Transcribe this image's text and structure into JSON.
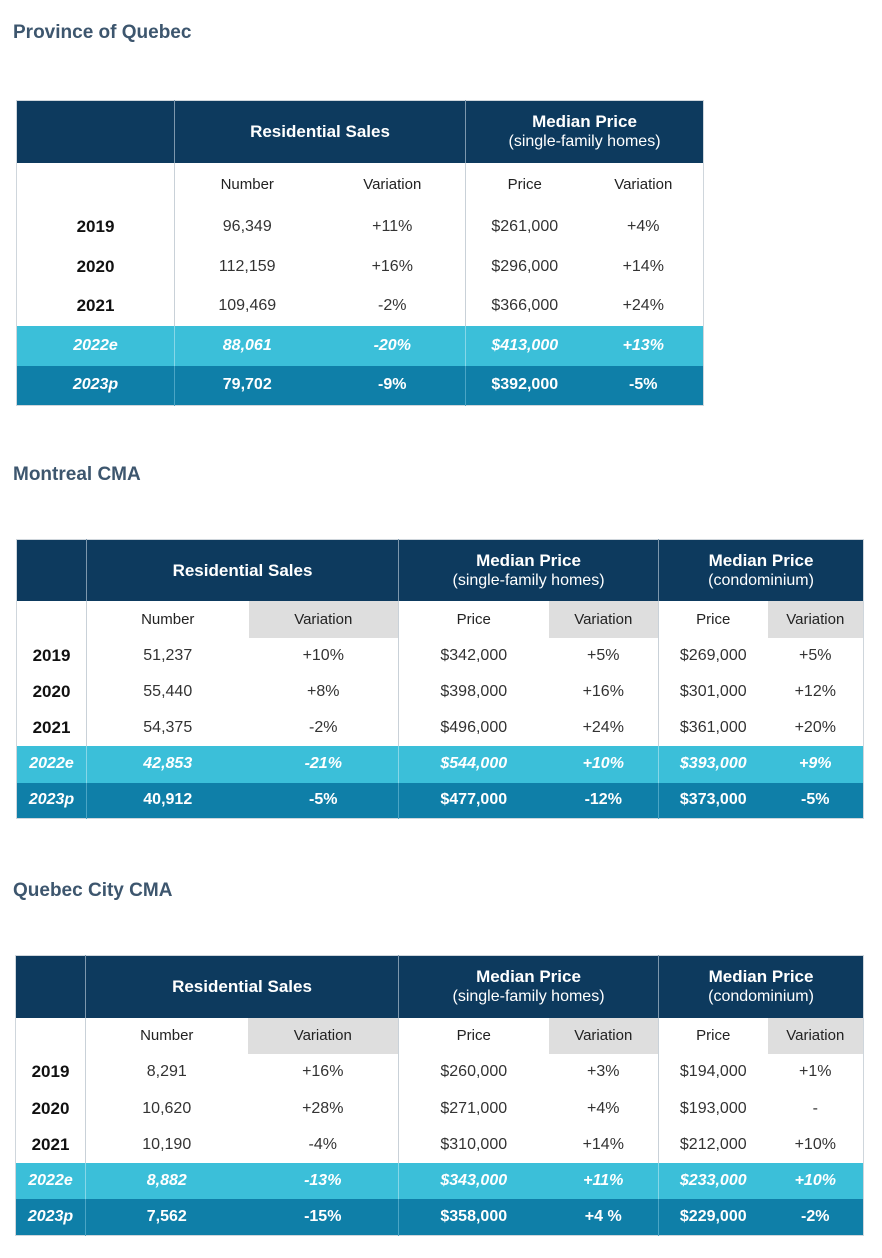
{
  "sections": [
    {
      "title": "Province of Quebec",
      "group_residential": "Residential Sales",
      "group_median_sf_title": "Median Price",
      "group_median_sf_sub": "(single-family homes)",
      "col_number": "Number",
      "col_variation": "Variation",
      "col_price": "Price",
      "col_price_variation": "Variation",
      "rows": [
        {
          "year": "2019",
          "number": "96,349",
          "var": "+11%",
          "price": "$261,000",
          "pvar": "+4%"
        },
        {
          "year": "2020",
          "number": "112,159",
          "var": "+16%",
          "price": "$296,000",
          "pvar": "+14%"
        },
        {
          "year": "2021",
          "number": "109,469",
          "var": "-2%",
          "price": "$366,000",
          "pvar": "+24%"
        },
        {
          "year": "2022e",
          "number": "88,061",
          "var": "-20%",
          "price": "$413,000",
          "pvar": "+13%"
        },
        {
          "year": "2023p",
          "number": "79,702",
          "var": "-9%",
          "price": "$392,000",
          "pvar": "-5%"
        }
      ]
    },
    {
      "title": "Montreal CMA",
      "group_residential": "Residential Sales",
      "group_median_sf_title": "Median Price",
      "group_median_sf_sub": "(single-family homes)",
      "group_median_condo_title": "Median Price",
      "group_median_condo_sub": "(condominium)",
      "col_number": "Number",
      "col_variation": "Variation",
      "col_price": "Price",
      "col_price_variation": "Variation",
      "col_condo_price": "Price",
      "col_condo_variation": "Variation",
      "rows": [
        {
          "year": "2019",
          "number": "51,237",
          "var": "+10%",
          "price": "$342,000",
          "pvar": "+5%",
          "cprice": "$269,000",
          "cvar": "+5%"
        },
        {
          "year": "2020",
          "number": "55,440",
          "var": "+8%",
          "price": "$398,000",
          "pvar": "+16%",
          "cprice": "$301,000",
          "cvar": "+12%"
        },
        {
          "year": "2021",
          "number": "54,375",
          "var": "-2%",
          "price": "$496,000",
          "pvar": "+24%",
          "cprice": "$361,000",
          "cvar": "+20%"
        },
        {
          "year": "2022e",
          "number": "42,853",
          "var": "-21%",
          "price": "$544,000",
          "pvar": "+10%",
          "cprice": "$393,000",
          "cvar": "+9%"
        },
        {
          "year": "2023p",
          "number": "40,912",
          "var": "-5%",
          "price": "$477,000",
          "pvar": "-12%",
          "cprice": "$373,000",
          "cvar": "-5%"
        }
      ]
    },
    {
      "title": "Quebec City CMA",
      "group_residential": "Residential Sales",
      "group_median_sf_title": "Median Price",
      "group_median_sf_sub": "(single-family homes)",
      "group_median_condo_title": "Median Price",
      "group_median_condo_sub": "(condominium)",
      "col_number": "Number",
      "col_variation": "Variation",
      "col_price": "Price",
      "col_price_variation": "Variation",
      "col_condo_price": "Price",
      "col_condo_variation": "Variation",
      "rows": [
        {
          "year": "2019",
          "number": "8,291",
          "var": "+16%",
          "price": "$260,000",
          "pvar": "+3%",
          "cprice": "$194,000",
          "cvar": "+1%"
        },
        {
          "year": "2020",
          "number": "10,620",
          "var": "+28%",
          "price": "$271,000",
          "pvar": "+4%",
          "cprice": "$193,000",
          "cvar": "-"
        },
        {
          "year": "2021",
          "number": "10,190",
          "var": "-4%",
          "price": "$310,000",
          "pvar": "+14%",
          "cprice": "$212,000",
          "cvar": "+10%"
        },
        {
          "year": "2022e",
          "number": "8,882",
          "var": "-13%",
          "price": "$343,000",
          "pvar": "+11%",
          "cprice": "$233,000",
          "cvar": "+10%"
        },
        {
          "year": "2023p",
          "number": "7,562",
          "var": "-15%",
          "price": "$358,000",
          "pvar": "+4 %",
          "cprice": "$229,000",
          "cvar": "-2%"
        }
      ]
    }
  ],
  "colors": {
    "header_navy": "#0d3a5e",
    "estimate_row": "#3bbfd9",
    "projection_row": "#0f7fa8",
    "title_text": "#3d566e",
    "subheader_shade": "#dedede"
  }
}
